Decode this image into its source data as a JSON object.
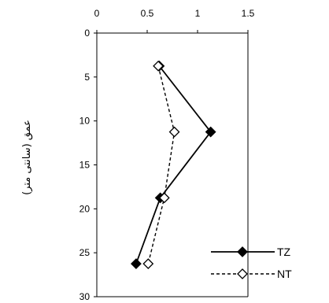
{
  "chart_data": {
    "type": "line",
    "orientation": "depth-profile",
    "title": "",
    "xlabel": "",
    "ylabel": "عمق (سانتی متر)",
    "xlim": [
      0,
      1.5
    ],
    "ylim": [
      0,
      30
    ],
    "y_inverted": true,
    "x_ticks": [
      "0",
      "0.5",
      "1",
      "1.5"
    ],
    "y_ticks": [
      "0",
      "5",
      "10",
      "15",
      "20",
      "25",
      "30"
    ],
    "x_axis_position": "top",
    "grid": false,
    "legend_position": "bottom-right",
    "series": [
      {
        "name": "TZ",
        "line_style": "solid",
        "marker": "filled-diamond",
        "color": "#000000",
        "x": [
          0.62,
          1.13,
          0.63,
          0.39
        ],
        "y": [
          3.75,
          11.25,
          18.75,
          26.25
        ]
      },
      {
        "name": "NT",
        "line_style": "dashed",
        "marker": "open-diamond",
        "color": "#000000",
        "x": [
          0.61,
          0.77,
          0.67,
          0.51
        ],
        "y": [
          3.75,
          11.25,
          18.75,
          26.25
        ]
      }
    ]
  }
}
